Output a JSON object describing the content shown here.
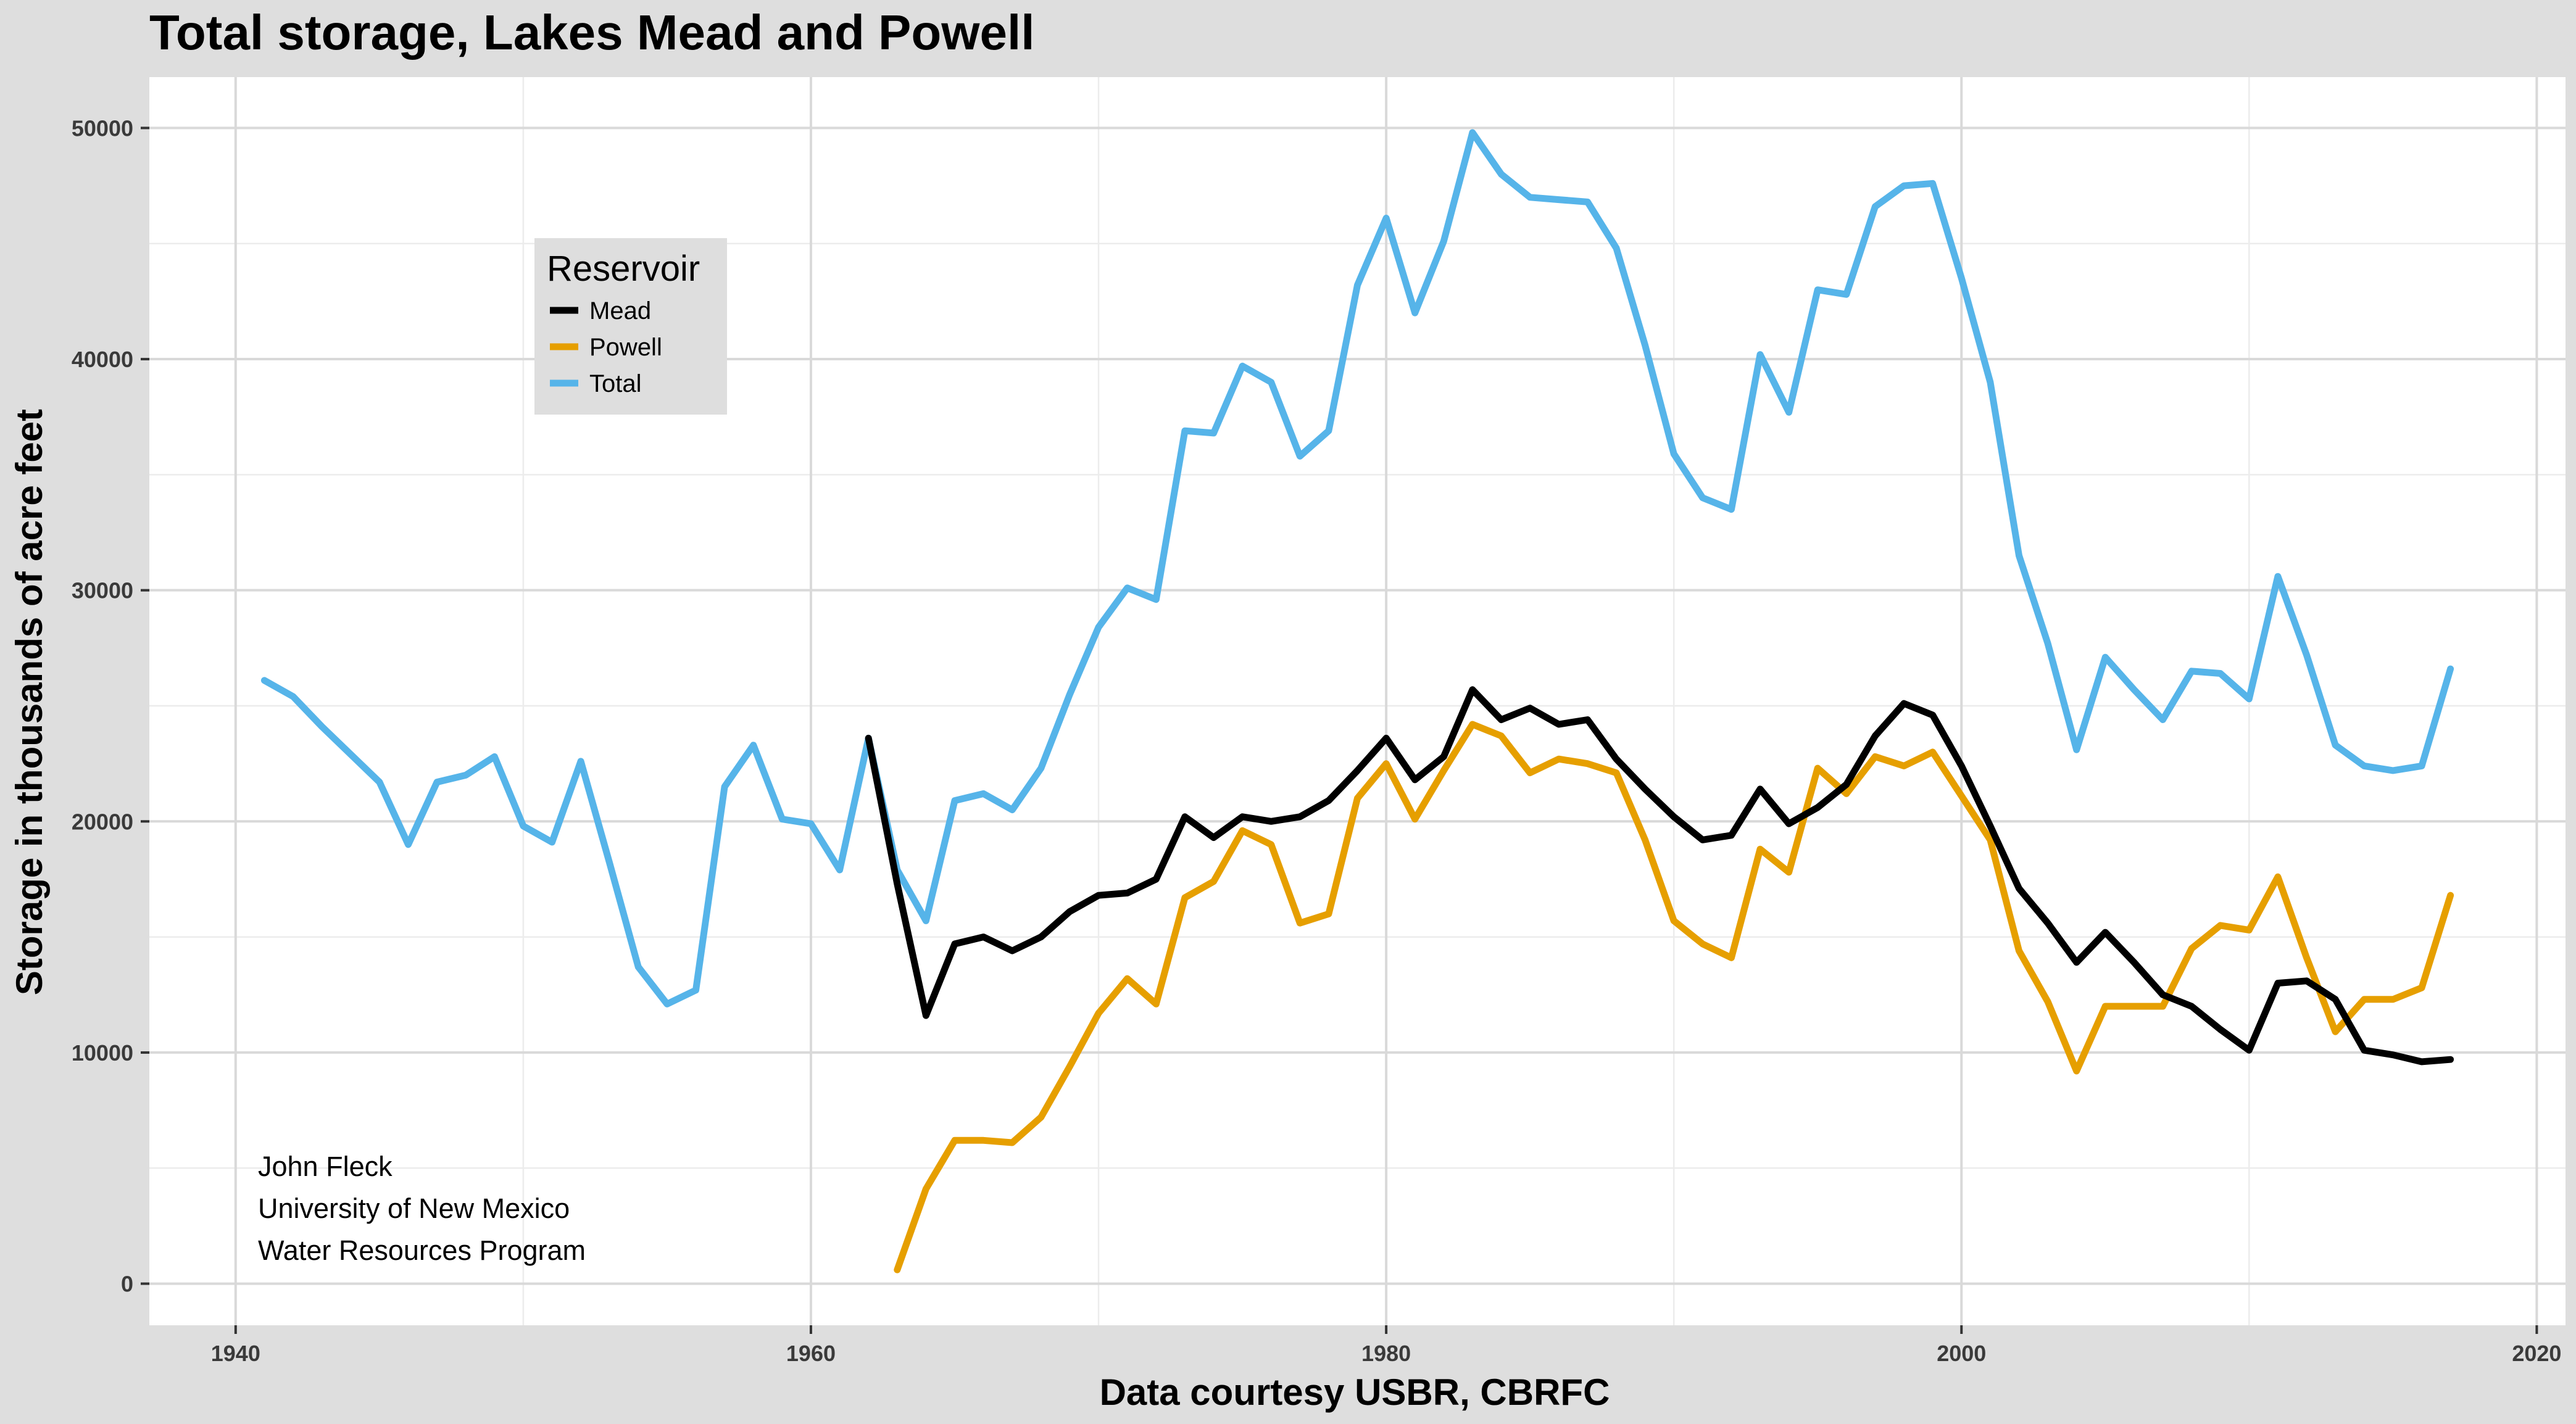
{
  "chart_data": {
    "type": "line",
    "title": "Total storage, Lakes Mead and Powell",
    "xlabel": "Data courtesy USBR, CBRFC",
    "ylabel": "Storage in thousands of acre feet",
    "xlim": [
      1937,
      2021
    ],
    "ylim": [
      -1800,
      52200
    ],
    "xticks": [
      1940,
      1960,
      1980,
      2000,
      2020
    ],
    "yticks": [
      0,
      10000,
      20000,
      30000,
      40000,
      50000
    ],
    "grid": true,
    "legend": {
      "title": "Reservoir",
      "placement": "top-left"
    },
    "series": [
      {
        "name": "Mead",
        "color": "#000000",
        "x": [
          1962,
          1963,
          1964,
          1965,
          1966,
          1967,
          1968,
          1969,
          1970,
          1971,
          1972,
          1973,
          1974,
          1975,
          1976,
          1977,
          1978,
          1979,
          1980,
          1981,
          1982,
          1983,
          1984,
          1985,
          1986,
          1987,
          1988,
          1989,
          1990,
          1991,
          1992,
          1993,
          1994,
          1995,
          1996,
          1997,
          1998,
          1999,
          2000,
          2001,
          2002,
          2003,
          2004,
          2005,
          2006,
          2007,
          2008,
          2009,
          2010,
          2011,
          2012,
          2013,
          2014,
          2015,
          2016,
          2017
        ],
        "y": [
          23600,
          17300,
          11600,
          14700,
          15000,
          14400,
          15000,
          16100,
          16800,
          16900,
          17500,
          20200,
          19300,
          20200,
          20000,
          20200,
          20900,
          22200,
          23600,
          21800,
          22800,
          25700,
          24400,
          24900,
          24200,
          24400,
          22700,
          21400,
          20200,
          19200,
          19400,
          21400,
          19900,
          20600,
          21600,
          23700,
          25100,
          24600,
          22400,
          19800,
          17100,
          15600,
          13900,
          15200,
          13900,
          12500,
          12000,
          11000,
          10100,
          13000,
          13100,
          12300,
          10100,
          9900,
          9600,
          9700
        ]
      },
      {
        "name": "Powell",
        "color": "#e69f00",
        "x": [
          1963,
          1964,
          1965,
          1966,
          1967,
          1968,
          1969,
          1970,
          1971,
          1972,
          1973,
          1974,
          1975,
          1976,
          1977,
          1978,
          1979,
          1980,
          1981,
          1982,
          1983,
          1984,
          1985,
          1986,
          1987,
          1988,
          1989,
          1990,
          1991,
          1992,
          1993,
          1994,
          1995,
          1996,
          1997,
          1998,
          1999,
          2000,
          2001,
          2002,
          2003,
          2004,
          2005,
          2006,
          2007,
          2008,
          2009,
          2010,
          2011,
          2012,
          2013,
          2014,
          2015,
          2016,
          2017
        ],
        "y": [
          600,
          4100,
          6200,
          6200,
          6100,
          7200,
          9400,
          11700,
          13200,
          12100,
          16700,
          17400,
          19600,
          19000,
          15600,
          16000,
          21000,
          22500,
          20100,
          22200,
          24200,
          23700,
          22100,
          22700,
          22500,
          22100,
          19200,
          15700,
          14700,
          14100,
          18800,
          17800,
          22300,
          21200,
          22800,
          22400,
          23000,
          21100,
          19200,
          14400,
          12200,
          9200,
          12000,
          12000,
          12000,
          14500,
          15500,
          15300,
          17600,
          14100,
          10900,
          12300,
          12300,
          12800,
          16800
        ]
      },
      {
        "name": "Total",
        "color": "#56b4e9",
        "x": [
          1941,
          1942,
          1943,
          1944,
          1945,
          1946,
          1947,
          1948,
          1949,
          1950,
          1951,
          1952,
          1953,
          1954,
          1955,
          1956,
          1957,
          1958,
          1959,
          1960,
          1961,
          1962,
          1963,
          1964,
          1965,
          1966,
          1967,
          1968,
          1969,
          1970,
          1971,
          1972,
          1973,
          1974,
          1975,
          1976,
          1977,
          1978,
          1979,
          1980,
          1981,
          1982,
          1983,
          1984,
          1985,
          1986,
          1987,
          1988,
          1989,
          1990,
          1991,
          1992,
          1993,
          1994,
          1995,
          1996,
          1997,
          1998,
          1999,
          2000,
          2001,
          2002,
          2003,
          2004,
          2005,
          2006,
          2007,
          2008,
          2009,
          2010,
          2011,
          2012,
          2013,
          2014,
          2015,
          2016,
          2017
        ],
        "y": [
          26100,
          25400,
          24100,
          22900,
          21700,
          19000,
          21700,
          22000,
          22800,
          19800,
          19100,
          22600,
          18200,
          13700,
          12100,
          12700,
          21500,
          23300,
          20100,
          19900,
          17900,
          23600,
          17900,
          15700,
          20900,
          21200,
          20500,
          22300,
          25500,
          28400,
          30100,
          29600,
          36900,
          36800,
          39700,
          39000,
          35800,
          36900,
          43200,
          46100,
          42000,
          45100,
          49800,
          48000,
          47000,
          46900,
          46800,
          44800,
          40600,
          35900,
          34000,
          33500,
          40200,
          37700,
          43000,
          42800,
          46600,
          47500,
          47600,
          43500,
          39000,
          31500,
          27700,
          23100,
          27100,
          25700,
          24400,
          26500,
          26400,
          25300,
          30600,
          27200,
          23300,
          22400,
          22200,
          22400,
          26600
        ]
      }
    ],
    "annotations": [
      "John Fleck",
      "University of New Mexico",
      "Water Resources Program"
    ]
  }
}
